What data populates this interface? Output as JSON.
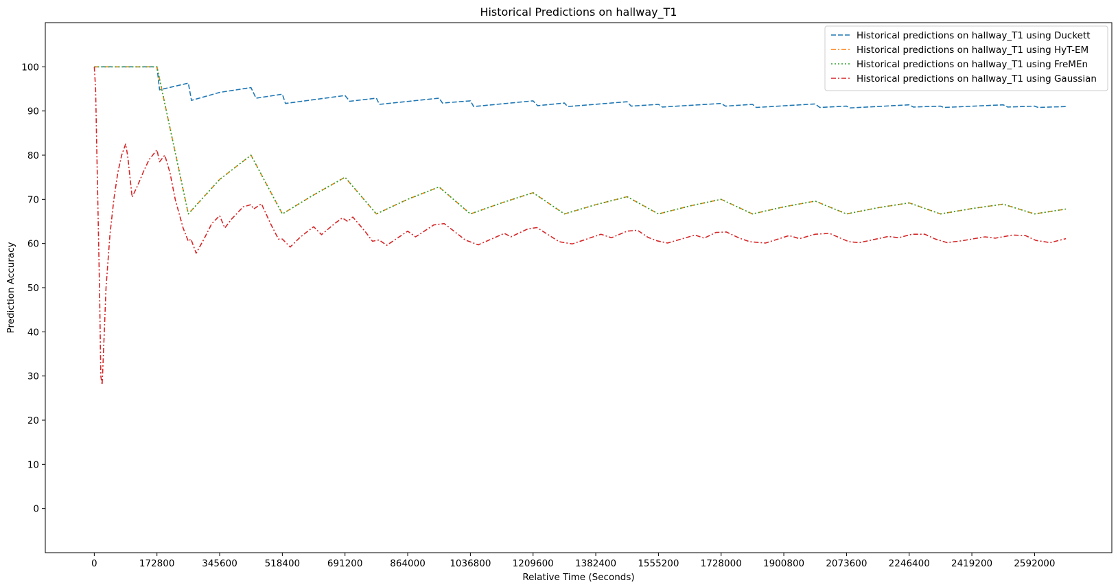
{
  "chart_data": {
    "type": "line",
    "title": "Historical Predictions on hallway_T1",
    "xlabel": "Relative Time (Seconds)",
    "ylabel": "Prediction Accuracy",
    "xlim": [
      -135000,
      2805000
    ],
    "ylim": [
      -10,
      110
    ],
    "xticks": [
      0,
      172800,
      345600,
      518400,
      691200,
      864000,
      1036800,
      1209600,
      1382400,
      1555200,
      1728000,
      1900800,
      2073600,
      2246400,
      2419200,
      2592000
    ],
    "xtick_labels": [
      "0",
      "172800",
      "345600",
      "518400",
      "691200",
      "864000",
      "1036800",
      "1209600",
      "1382400",
      "1555200",
      "1728000",
      "1900800",
      "2073600",
      "2246400",
      "2419200",
      "2592000"
    ],
    "yticks": [
      0,
      10,
      20,
      30,
      40,
      50,
      60,
      70,
      80,
      90,
      100
    ],
    "ytick_labels": [
      "0",
      "10",
      "20",
      "30",
      "40",
      "50",
      "60",
      "70",
      "80",
      "90",
      "100"
    ],
    "grid": false,
    "legend_position": "top-right",
    "series": [
      {
        "name": "Historical predictions on hallway_T1 using Duckett",
        "color": "#1f77b4",
        "dash": "dashed",
        "points": [
          [
            0,
            100
          ],
          [
            172800,
            100
          ],
          [
            180000,
            94.8
          ],
          [
            259200,
            96.3
          ],
          [
            268000,
            92.4
          ],
          [
            345600,
            94.2
          ],
          [
            432000,
            95.3
          ],
          [
            446000,
            92.9
          ],
          [
            518400,
            93.8
          ],
          [
            527000,
            91.7
          ],
          [
            691200,
            93.5
          ],
          [
            704000,
            92.2
          ],
          [
            777600,
            92.9
          ],
          [
            786000,
            91.5
          ],
          [
            950400,
            92.9
          ],
          [
            960000,
            91.8
          ],
          [
            1036800,
            92.3
          ],
          [
            1046000,
            91.0
          ],
          [
            1209600,
            92.3
          ],
          [
            1222000,
            91.2
          ],
          [
            1296000,
            91.8
          ],
          [
            1305000,
            91.0
          ],
          [
            1468800,
            92.1
          ],
          [
            1480000,
            91.1
          ],
          [
            1555200,
            91.5
          ],
          [
            1566000,
            90.9
          ],
          [
            1728000,
            91.7
          ],
          [
            1740000,
            91.1
          ],
          [
            1814400,
            91.5
          ],
          [
            1825000,
            90.8
          ],
          [
            1987200,
            91.6
          ],
          [
            2000000,
            90.8
          ],
          [
            2073600,
            91.1
          ],
          [
            2084000,
            90.7
          ],
          [
            2246400,
            91.4
          ],
          [
            2258000,
            90.9
          ],
          [
            2332800,
            91.1
          ],
          [
            2342000,
            90.8
          ],
          [
            2505600,
            91.4
          ],
          [
            2518000,
            90.9
          ],
          [
            2592000,
            91.1
          ],
          [
            2602000,
            90.8
          ],
          [
            2678400,
            91.0
          ]
        ]
      },
      {
        "name": "Historical predictions on hallway_T1 using HyT-EM",
        "color": "#ff7f0e",
        "dash": "dashdot",
        "points": [
          [
            0,
            100
          ],
          [
            172800,
            100
          ],
          [
            259200,
            66.7
          ],
          [
            345600,
            74.5
          ],
          [
            432000,
            80.0
          ],
          [
            518400,
            66.7
          ],
          [
            604800,
            71.0
          ],
          [
            691200,
            75.0
          ],
          [
            777600,
            66.7
          ],
          [
            864000,
            70.0
          ],
          [
            950400,
            72.8
          ],
          [
            1036800,
            66.7
          ],
          [
            1123200,
            69.2
          ],
          [
            1209600,
            71.5
          ],
          [
            1296000,
            66.7
          ],
          [
            1382400,
            68.8
          ],
          [
            1468800,
            70.6
          ],
          [
            1555200,
            66.7
          ],
          [
            1641600,
            68.5
          ],
          [
            1728000,
            70.0
          ],
          [
            1814400,
            66.7
          ],
          [
            1900800,
            68.3
          ],
          [
            1987200,
            69.6
          ],
          [
            2073600,
            66.7
          ],
          [
            2160000,
            68.1
          ],
          [
            2246400,
            69.2
          ],
          [
            2332800,
            66.7
          ],
          [
            2419200,
            67.9
          ],
          [
            2505600,
            68.9
          ],
          [
            2592000,
            66.7
          ],
          [
            2678400,
            67.8
          ]
        ]
      },
      {
        "name": "Historical predictions on hallway_T1 using FreMEn",
        "color": "#2ca02c",
        "dash": "dotted",
        "points": [
          [
            0,
            100
          ],
          [
            172800,
            100
          ],
          [
            259200,
            66.7
          ],
          [
            345600,
            74.5
          ],
          [
            432000,
            80.0
          ],
          [
            518400,
            66.7
          ],
          [
            604800,
            71.0
          ],
          [
            691200,
            75.0
          ],
          [
            777600,
            66.7
          ],
          [
            864000,
            70.0
          ],
          [
            950400,
            72.8
          ],
          [
            1036800,
            66.7
          ],
          [
            1123200,
            69.2
          ],
          [
            1209600,
            71.5
          ],
          [
            1296000,
            66.7
          ],
          [
            1382400,
            68.8
          ],
          [
            1468800,
            70.6
          ],
          [
            1555200,
            66.7
          ],
          [
            1641600,
            68.5
          ],
          [
            1728000,
            70.0
          ],
          [
            1814400,
            66.7
          ],
          [
            1900800,
            68.3
          ],
          [
            1987200,
            69.6
          ],
          [
            2073600,
            66.7
          ],
          [
            2160000,
            68.1
          ],
          [
            2246400,
            69.2
          ],
          [
            2332800,
            66.7
          ],
          [
            2419200,
            67.9
          ],
          [
            2505600,
            68.9
          ],
          [
            2592000,
            66.7
          ],
          [
            2678400,
            67.8
          ]
        ]
      },
      {
        "name": "Historical predictions on hallway_T1 using Gaussian",
        "color": "#d62728",
        "dash": "dashdot",
        "points": [
          [
            0,
            100
          ],
          [
            3600,
            95
          ],
          [
            14400,
            50
          ],
          [
            18000,
            30
          ],
          [
            21600,
            28
          ],
          [
            25200,
            35
          ],
          [
            32400,
            50
          ],
          [
            43200,
            62
          ],
          [
            54000,
            70
          ],
          [
            64800,
            76
          ],
          [
            75600,
            80
          ],
          [
            86400,
            82.5
          ],
          [
            91800,
            80
          ],
          [
            97200,
            76
          ],
          [
            104400,
            70.5
          ],
          [
            118800,
            73
          ],
          [
            136800,
            76.5
          ],
          [
            151200,
            79
          ],
          [
            172800,
            81.2
          ],
          [
            180000,
            78.5
          ],
          [
            194400,
            80
          ],
          [
            208800,
            76
          ],
          [
            223200,
            70
          ],
          [
            244800,
            63.5
          ],
          [
            259200,
            60.5
          ],
          [
            266400,
            61
          ],
          [
            280800,
            57.8
          ],
          [
            302400,
            61
          ],
          [
            324000,
            64.5
          ],
          [
            345600,
            66.3
          ],
          [
            360000,
            63.5
          ],
          [
            378000,
            65.5
          ],
          [
            410400,
            68.3
          ],
          [
            432000,
            68.8
          ],
          [
            439200,
            67.8
          ],
          [
            460800,
            69
          ],
          [
            486000,
            64.5
          ],
          [
            507600,
            61
          ],
          [
            518400,
            61
          ],
          [
            540000,
            59.2
          ],
          [
            568800,
            61.5
          ],
          [
            604800,
            63.8
          ],
          [
            626400,
            62
          ],
          [
            662400,
            64.5
          ],
          [
            684000,
            65.8
          ],
          [
            698400,
            65
          ],
          [
            712800,
            66
          ],
          [
            748800,
            62.5
          ],
          [
            766800,
            60.5
          ],
          [
            784800,
            60.8
          ],
          [
            806400,
            59.6
          ],
          [
            864000,
            62.8
          ],
          [
            885600,
            61.5
          ],
          [
            936000,
            64.2
          ],
          [
            964800,
            64.5
          ],
          [
            1000800,
            62.2
          ],
          [
            1022400,
            60.8
          ],
          [
            1058400,
            59.7
          ],
          [
            1130400,
            62.3
          ],
          [
            1148400,
            61.5
          ],
          [
            1195200,
            63.3
          ],
          [
            1220400,
            63.6
          ],
          [
            1245600,
            62.3
          ],
          [
            1281600,
            60.4
          ],
          [
            1317600,
            59.9
          ],
          [
            1396800,
            62.1
          ],
          [
            1425600,
            61.3
          ],
          [
            1468800,
            62.8
          ],
          [
            1497600,
            63
          ],
          [
            1526400,
            61.4
          ],
          [
            1551600,
            60.6
          ],
          [
            1580400,
            60.1
          ],
          [
            1656000,
            61.9
          ],
          [
            1681200,
            61.2
          ],
          [
            1713600,
            62.5
          ],
          [
            1742400,
            62.6
          ],
          [
            1778400,
            61.2
          ],
          [
            1807200,
            60.4
          ],
          [
            1850400,
            60.1
          ],
          [
            1915200,
            61.8
          ],
          [
            1944000,
            61.1
          ],
          [
            1987200,
            62.1
          ],
          [
            2026800,
            62.3
          ],
          [
            2062800,
            61
          ],
          [
            2080800,
            60.4
          ],
          [
            2109600,
            60.2
          ],
          [
            2188800,
            61.6
          ],
          [
            2217600,
            61.3
          ],
          [
            2253600,
            62.1
          ],
          [
            2289600,
            62.1
          ],
          [
            2318400,
            61
          ],
          [
            2350800,
            60.2
          ],
          [
            2390400,
            60.6
          ],
          [
            2455200,
            61.5
          ],
          [
            2484000,
            61.2
          ],
          [
            2530800,
            61.9
          ],
          [
            2566800,
            61.8
          ],
          [
            2595600,
            60.7
          ],
          [
            2635200,
            60.2
          ],
          [
            2678400,
            61.1
          ]
        ]
      }
    ]
  }
}
